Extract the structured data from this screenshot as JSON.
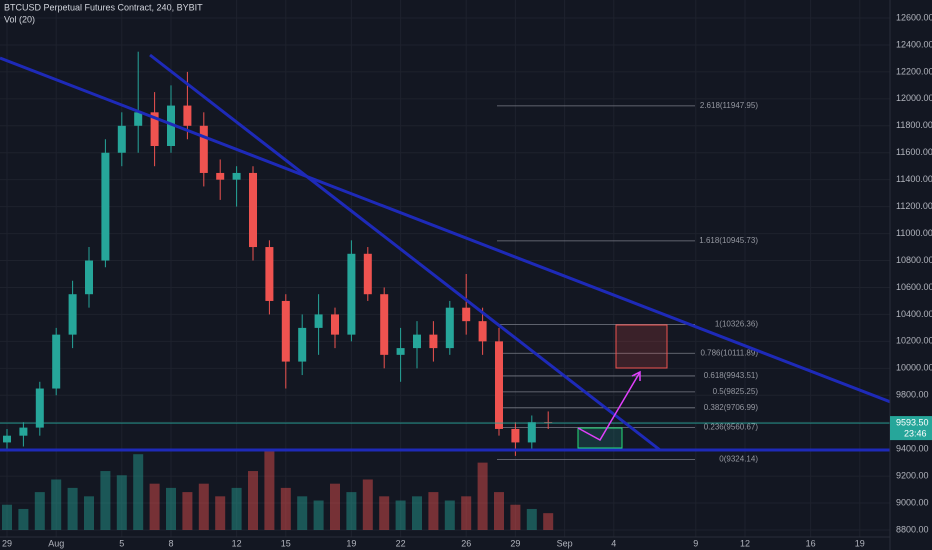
{
  "chart_data": {
    "type": "candlestick",
    "title": "BTCUSD Perpetual Futures Contract, 240, BYBIT",
    "subtitle": "Vol (20)",
    "categories": [
      "29",
      null,
      null,
      "Aug",
      null,
      null,
      null,
      "5",
      null,
      null,
      "8",
      null,
      null,
      null,
      "12",
      null,
      null,
      "15",
      null,
      null,
      null,
      "19",
      null,
      null,
      "22",
      null,
      null,
      null,
      "26",
      null,
      null,
      "29",
      null,
      null,
      "Sep",
      null,
      null,
      "4",
      null,
      null,
      null,
      null,
      "9",
      null,
      null,
      "12",
      null,
      null,
      null,
      "16",
      null,
      null,
      "19"
    ],
    "open": [
      9450,
      9500,
      9560,
      9850,
      10250,
      10550,
      10800,
      11600,
      11800,
      11900,
      11650,
      11950,
      11800,
      11450,
      11400,
      11450,
      10900,
      10500,
      10050,
      10300,
      10400,
      10250,
      10850,
      10550,
      10100,
      10150,
      10250,
      10150,
      10450,
      10350,
      10200,
      9550,
      9450,
      9600,
      null,
      null,
      null,
      null,
      null,
      null,
      null,
      null,
      null,
      null,
      null,
      null,
      null,
      null,
      null,
      null,
      null,
      null,
      null
    ],
    "high": [
      9550,
      9600,
      9900,
      10300,
      10650,
      10900,
      11700,
      11900,
      12350,
      12050,
      12100,
      12200,
      11900,
      11550,
      11500,
      11500,
      10950,
      10550,
      10400,
      10550,
      10450,
      10950,
      10900,
      10600,
      10300,
      10350,
      10350,
      10500,
      10700,
      10450,
      10300,
      9600,
      9650,
      9680,
      null,
      null,
      null,
      null,
      null,
      null,
      null,
      null,
      null,
      null,
      null,
      null,
      null,
      null,
      null,
      null,
      null,
      null,
      null
    ],
    "low": [
      9400,
      9420,
      9500,
      9800,
      10150,
      10450,
      10750,
      11500,
      11600,
      11500,
      11600,
      11700,
      11350,
      11250,
      11200,
      10800,
      10400,
      9850,
      9950,
      10100,
      10150,
      10200,
      10500,
      10000,
      9900,
      10000,
      10050,
      10100,
      10250,
      10100,
      9500,
      9350,
      9400,
      9550,
      null,
      null,
      null,
      null,
      null,
      null,
      null,
      null,
      null,
      null,
      null,
      null,
      null,
      null,
      null,
      null,
      null,
      null,
      null
    ],
    "close": [
      9500,
      9560,
      9850,
      10250,
      10550,
      10800,
      11600,
      11800,
      11900,
      11650,
      11950,
      11800,
      11450,
      11400,
      11450,
      10900,
      10500,
      10050,
      10300,
      10400,
      10250,
      10850,
      10550,
      10100,
      10150,
      10250,
      10150,
      10450,
      10350,
      10200,
      9550,
      9450,
      9600,
      9593.5,
      null,
      null,
      null,
      null,
      null,
      null,
      null,
      null,
      null,
      null,
      null,
      null,
      null,
      null,
      null,
      null,
      null,
      null,
      null
    ],
    "volume": [
      30,
      25,
      45,
      60,
      50,
      40,
      70,
      65,
      90,
      55,
      50,
      45,
      55,
      40,
      50,
      70,
      95,
      50,
      40,
      35,
      55,
      45,
      60,
      40,
      35,
      40,
      45,
      35,
      40,
      80,
      45,
      30,
      25,
      20,
      null,
      null,
      null,
      null,
      null,
      null,
      null,
      null,
      null,
      null,
      null,
      null,
      null,
      null,
      null,
      null,
      null,
      null,
      null
    ],
    "up_color": "#26a69a",
    "down_color": "#ef5350",
    "ylim": [
      8700,
      12700
    ],
    "yticks": [
      {
        "value": 8800,
        "label": "8800.00"
      },
      {
        "value": 9000,
        "label": "9000.00"
      },
      {
        "value": 9200,
        "label": "9200.00"
      },
      {
        "value": 9400,
        "label": "9400.00"
      },
      {
        "value": 9600,
        "label": "9600.00"
      },
      {
        "value": 9800,
        "label": "9800.00"
      },
      {
        "value": 10000,
        "label": "10000.00"
      },
      {
        "value": 10200,
        "label": "10200.00"
      },
      {
        "value": 10400,
        "label": "10400.00"
      },
      {
        "value": 10600,
        "label": "10600.00"
      },
      {
        "value": 10800,
        "label": "10800.00"
      },
      {
        "value": 11000,
        "label": "11000.00"
      },
      {
        "value": 11200,
        "label": "11200.00"
      },
      {
        "value": 11400,
        "label": "11400.00"
      },
      {
        "value": 11600,
        "label": "11600.00"
      },
      {
        "value": 11800,
        "label": "11800.00"
      },
      {
        "value": 12000,
        "label": "12000.00"
      },
      {
        "value": 12200,
        "label": "12200.00"
      },
      {
        "value": 12400,
        "label": "12400.00"
      },
      {
        "value": 12600,
        "label": "12600.00"
      }
    ],
    "fib_levels": [
      {
        "value": 11947.95,
        "label": "2.618(11947.95)"
      },
      {
        "value": 10945.73,
        "label": "1.618(10945.73)"
      },
      {
        "value": 10326.36,
        "label": "1(10326.36)"
      },
      {
        "value": 10111.89,
        "label": "0.786(10111.89)"
      },
      {
        "value": 9943.51,
        "label": "0.618(9943.51)"
      },
      {
        "value": 9825.25,
        "label": "0.5(9825.25)"
      },
      {
        "value": 9706.99,
        "label": "0.382(9706.99)"
      },
      {
        "value": 9560.67,
        "label": "0.236(9560.67)"
      },
      {
        "value": 9324.14,
        "label": "0(9324.14)"
      }
    ],
    "last_price": {
      "value": 9593.5,
      "label": "9593.50"
    },
    "countdown": "23:46",
    "grid": true
  }
}
